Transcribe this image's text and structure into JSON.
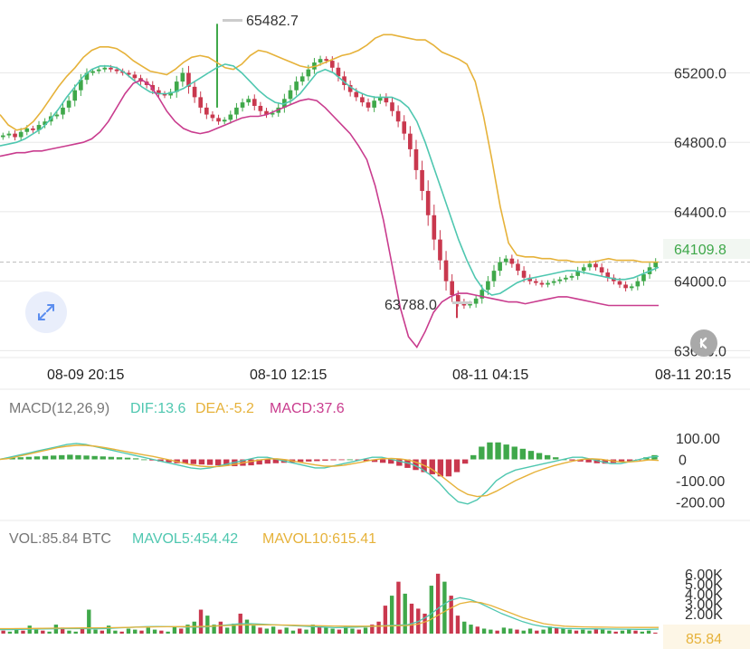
{
  "chart_data": [
    {
      "type": "candlestick",
      "name": "price",
      "y_ticks": [
        "65200.0",
        "64800.0",
        "64400.0",
        "64000.0",
        "63600.0"
      ],
      "y_tick_values": [
        65200,
        64800,
        64400,
        64000,
        63600
      ],
      "ylim": [
        63560,
        65620
      ],
      "x_tick_labels": [
        "08-09 20:15",
        "08-10 12:15",
        "08-11 04:15",
        "08-11 20:15"
      ],
      "current_price": "64109.8",
      "current_price_value": 64109.8,
      "high_annotation": "65482.7",
      "high_value": 65482.7,
      "low_annotation": "63788.0",
      "low_value": 63788.0,
      "close_series": [
        64840,
        64850,
        64830,
        64860,
        64880,
        64870,
        64900,
        64920,
        64950,
        64960,
        65000,
        65040,
        65100,
        65160,
        65200,
        65210,
        65220,
        65230,
        65220,
        65210,
        65200,
        65190,
        65170,
        65150,
        65130,
        65100,
        65080,
        65070,
        65090,
        65150,
        65200,
        65120,
        65060,
        65000,
        64960,
        64940,
        64920,
        64930,
        64960,
        65000,
        65030,
        65050,
        65010,
        64980,
        64960,
        64970,
        65000,
        65050,
        65100,
        65150,
        65180,
        65220,
        65260,
        65280,
        65270,
        65230,
        65180,
        65130,
        65090,
        65060,
        65030,
        65000,
        65040,
        65060,
        65030,
        64980,
        64920,
        64850,
        64760,
        64640,
        64520,
        64380,
        64240,
        64120,
        64000,
        63920,
        63880,
        63860,
        63870,
        63900,
        63950,
        64000,
        64060,
        64110,
        64130,
        64100,
        64060,
        64020,
        64000,
        63990,
        63980,
        63990,
        64000,
        64010,
        64020,
        64030,
        64060,
        64080,
        64100,
        64080,
        64050,
        64020,
        64000,
        63980,
        63960,
        63970,
        64000,
        64040,
        64080,
        64110
      ],
      "ma_lines": [
        {
          "color": "#e6b23a",
          "series": [
            64960,
            64900,
            64870,
            64880,
            64920,
            64980,
            65050,
            65120,
            65180,
            65230,
            65290,
            65330,
            65350,
            65350,
            65340,
            65310,
            65270,
            65240,
            65210,
            65200,
            65190,
            65220,
            65260,
            65290,
            65300,
            65290,
            65260,
            65230,
            65220,
            65250,
            65300,
            65330,
            65320,
            65300,
            65280,
            65260,
            65240,
            65230,
            65240,
            65260,
            65280,
            65300,
            65310,
            65330,
            65360,
            65400,
            65420,
            65420,
            65410,
            65400,
            65390,
            65390,
            65360,
            65320,
            65300,
            65280,
            65250,
            65150,
            64950,
            64700,
            64430,
            64220,
            64150,
            64140,
            64140,
            64130,
            64130,
            64120,
            64120,
            64110,
            64110,
            64110,
            64120,
            64130,
            64120,
            64120,
            64120,
            64110,
            64110,
            64110
          ]
        },
        {
          "color": "#4fc7b0",
          "series": [
            64780,
            64790,
            64800,
            64820,
            64850,
            64880,
            64930,
            64990,
            65060,
            65120,
            65180,
            65220,
            65240,
            65240,
            65230,
            65200,
            65160,
            65120,
            65090,
            65080,
            65080,
            65090,
            65110,
            65140,
            65170,
            65200,
            65230,
            65250,
            65240,
            65200,
            65150,
            65100,
            65060,
            65030,
            65020,
            65040,
            65080,
            65140,
            65200,
            65220,
            65200,
            65160,
            65120,
            65090,
            65070,
            65060,
            65060,
            65060,
            65040,
            65000,
            64920,
            64800,
            64660,
            64520,
            64380,
            64240,
            64120,
            64020,
            63950,
            63920,
            63930,
            63960,
            63990,
            64010,
            64020,
            64030,
            64040,
            64050,
            64060,
            64060,
            64050,
            64040,
            64030,
            64020,
            64010,
            64010,
            64020,
            64040,
            64060,
            64080
          ]
        },
        {
          "color": "#c93c8e",
          "series": [
            64720,
            64730,
            64740,
            64740,
            64750,
            64750,
            64760,
            64770,
            64780,
            64790,
            64800,
            64820,
            64860,
            64920,
            65000,
            65080,
            65140,
            65160,
            65130,
            65060,
            64980,
            64920,
            64880,
            64860,
            64850,
            64860,
            64880,
            64900,
            64920,
            64940,
            64950,
            64950,
            64960,
            64980,
            65000,
            65020,
            65040,
            65050,
            65040,
            65000,
            64950,
            64900,
            64850,
            64780,
            64700,
            64550,
            64350,
            64100,
            63850,
            63680,
            63620,
            63710,
            63820,
            63880,
            63910,
            63930,
            63930,
            63920,
            63910,
            63900,
            63890,
            63880,
            63880,
            63870,
            63880,
            63890,
            63900,
            63910,
            63910,
            63900,
            63890,
            63880,
            63870,
            63860,
            63860,
            63860,
            63860,
            63860,
            63860,
            63860
          ]
        }
      ]
    },
    {
      "type": "bar",
      "name": "macd",
      "title": "MACD(12,26,9)",
      "dif_label": "DIF:13.6",
      "dea_label": "DEA:-5.2",
      "macd_label": "MACD:37.6",
      "y_ticks": [
        "100.00",
        "0",
        "-100.00",
        "-200.00"
      ],
      "y_tick_values": [
        100,
        0,
        -100,
        -200
      ],
      "ylim": [
        -245,
        160
      ],
      "histogram": [
        5,
        8,
        10,
        12,
        14,
        16,
        18,
        20,
        22,
        20,
        18,
        16,
        14,
        12,
        10,
        8,
        5,
        0,
        -5,
        -10,
        -14,
        -18,
        -20,
        -22,
        -24,
        -26,
        -28,
        -30,
        -32,
        -30,
        -28,
        -24,
        -20,
        -18,
        -16,
        -14,
        -12,
        -10,
        -8,
        -6,
        -4,
        -2,
        0,
        -4,
        -8,
        -12,
        -16,
        -20,
        -30,
        -40,
        -50,
        -60,
        -70,
        -80,
        -80,
        -60,
        -20,
        20,
        60,
        80,
        80,
        70,
        60,
        50,
        40,
        30,
        20,
        10,
        0,
        -5,
        -10,
        -14,
        -18,
        -20,
        -16,
        -12,
        -8,
        -4,
        10,
        20
      ],
      "dif_series": [
        0,
        10,
        20,
        30,
        40,
        50,
        60,
        70,
        75,
        70,
        60,
        50,
        40,
        30,
        20,
        10,
        0,
        -10,
        -20,
        -30,
        -40,
        -45,
        -40,
        -30,
        -20,
        -10,
        0,
        10,
        10,
        0,
        -10,
        -20,
        -30,
        -40,
        -40,
        -30,
        -20,
        -10,
        0,
        10,
        10,
        0,
        -10,
        -20,
        -40,
        -70,
        -110,
        -160,
        -200,
        -210,
        -190,
        -150,
        -100,
        -70,
        -50,
        -40,
        -30,
        -20,
        -10,
        0,
        10,
        10,
        0,
        -10,
        -20,
        -20,
        -10,
        0,
        10,
        14
      ],
      "dea_series": [
        0,
        5,
        15,
        25,
        35,
        45,
        55,
        62,
        66,
        66,
        62,
        55,
        47,
        38,
        30,
        22,
        14,
        5,
        -5,
        -15,
        -25,
        -32,
        -35,
        -33,
        -28,
        -20,
        -12,
        -4,
        2,
        3,
        -2,
        -10,
        -18,
        -26,
        -32,
        -32,
        -28,
        -20,
        -12,
        -3,
        3,
        5,
        2,
        -5,
        -20,
        -40,
        -70,
        -105,
        -140,
        -165,
        -175,
        -170,
        -150,
        -125,
        -100,
        -80,
        -60,
        -44,
        -30,
        -18,
        -8,
        0,
        3,
        0,
        -6,
        -12,
        -12,
        -8,
        -2,
        -5
      ]
    },
    {
      "type": "bar",
      "name": "volume",
      "vol_label": "VOL:85.84 BTC",
      "mavol5_label": "MAVOL5:454.42",
      "mavol10_label": "MAVOL10:615.41",
      "y_ticks": [
        "6.00K",
        "5.00K",
        "4.00K",
        "3.00K",
        "2.00K"
      ],
      "y_tick_values": [
        6000,
        5000,
        4000,
        3000,
        2000
      ],
      "ylim": [
        0,
        6800
      ],
      "current_volume": "85.84",
      "volumes": [
        300,
        200,
        500,
        300,
        800,
        400,
        300,
        200,
        900,
        600,
        300,
        200,
        500,
        2400,
        400,
        300,
        800,
        300,
        200,
        500,
        400,
        300,
        600,
        400,
        300,
        200,
        700,
        500,
        900,
        1200,
        2400,
        1800,
        900,
        1200,
        600,
        1000,
        2000,
        1400,
        800,
        600,
        500,
        700,
        400,
        600,
        300,
        500,
        400,
        900,
        700,
        600,
        500,
        400,
        700,
        500,
        400,
        600,
        900,
        1200,
        2800,
        3800,
        5200,
        4000,
        3000,
        2500,
        2000,
        4800,
        6000,
        5200,
        3800,
        1800,
        1200,
        900,
        700,
        500,
        400,
        300,
        600,
        500,
        400,
        300,
        500,
        300,
        400,
        700,
        600,
        500,
        400,
        300,
        400,
        300,
        500,
        400,
        300,
        200,
        300,
        400,
        300,
        200,
        300,
        100
      ],
      "mavol5_series": [
        400,
        400,
        420,
        440,
        460,
        480,
        500,
        520,
        500,
        480,
        500,
        550,
        600,
        650,
        700,
        720,
        700,
        680,
        650,
        640,
        700,
        800,
        900,
        1000,
        1000,
        950,
        900,
        850,
        800,
        750,
        700,
        650,
        600,
        620,
        650,
        700,
        750,
        800,
        850,
        900,
        1200,
        1800,
        2600,
        3300,
        3600,
        3400,
        3000,
        2500,
        2000,
        1600,
        1200,
        900,
        700,
        600,
        520,
        500,
        480,
        470,
        460,
        450,
        440,
        430,
        430,
        450
      ],
      "mavol10_series": [
        500,
        500,
        510,
        520,
        530,
        540,
        550,
        560,
        570,
        580,
        590,
        600,
        620,
        640,
        660,
        680,
        690,
        700,
        710,
        720,
        740,
        780,
        820,
        860,
        880,
        880,
        870,
        860,
        840,
        820,
        800,
        780,
        760,
        750,
        740,
        740,
        750,
        760,
        780,
        820,
        950,
        1300,
        1900,
        2500,
        3000,
        3200,
        3100,
        2800,
        2400,
        2000,
        1600,
        1300,
        1000,
        850,
        740,
        700,
        670,
        650,
        640,
        630,
        625,
        620,
        618,
        615
      ]
    }
  ],
  "colors": {
    "up": "#3fa84a",
    "down": "#c9384e",
    "ma_gold": "#e6b23a",
    "ma_teal": "#4fc7b0",
    "ma_magenta": "#c93c8e",
    "grid": "#e8e8e8",
    "current_price": "#3fa84a"
  },
  "icons": {
    "expand": "expand-arrows-icon",
    "scroll_back": "chevron-left-icon"
  }
}
